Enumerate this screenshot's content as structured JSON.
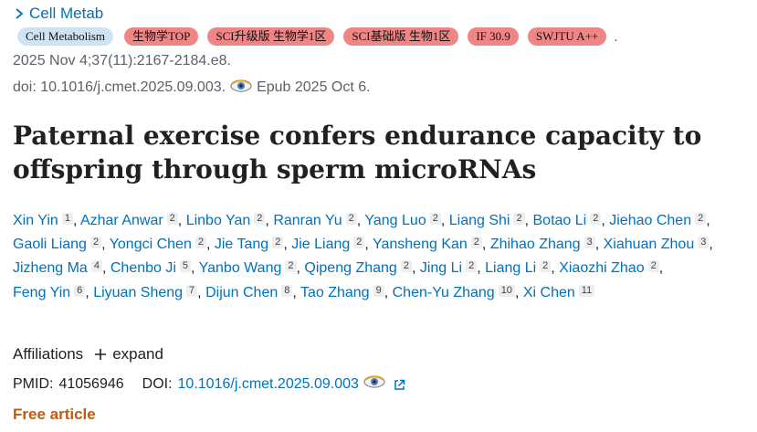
{
  "journal": {
    "name": "Cell Metab"
  },
  "badges": [
    {
      "text": "Cell Metabolism",
      "style": "blue"
    },
    {
      "text": "生物学TOP",
      "style": "red"
    },
    {
      "text": "SCI升级版 生物学1区",
      "style": "red"
    },
    {
      "text": "SCI基础版 生物1区",
      "style": "red"
    },
    {
      "text": "IF 30.9",
      "style": "red"
    },
    {
      "text": "SWJTU A++",
      "style": "red"
    }
  ],
  "badge_trailer": ".",
  "citation": "2025 Nov 4;37(11):2167-2184.e8.",
  "doi_line": {
    "doi": "doi: 10.1016/j.cmet.2025.09.003.",
    "epub": "Epub 2025 Oct 6."
  },
  "title": "Paternal exercise confers endurance capacity to offspring through sperm microRNAs",
  "authors": [
    {
      "name": "Xin Yin",
      "aff": "1"
    },
    {
      "name": "Azhar Anwar",
      "aff": "2"
    },
    {
      "name": "Linbo Yan",
      "aff": "2"
    },
    {
      "name": "Ranran Yu",
      "aff": "2"
    },
    {
      "name": "Yang Luo",
      "aff": "2"
    },
    {
      "name": "Liang Shi",
      "aff": "2"
    },
    {
      "name": "Botao Li",
      "aff": "2"
    },
    {
      "name": "Jiehao Chen",
      "aff": "2"
    },
    {
      "name": "Gaoli Liang",
      "aff": "2"
    },
    {
      "name": "Yongci Chen",
      "aff": "2"
    },
    {
      "name": "Jie Tang",
      "aff": "2"
    },
    {
      "name": "Jie Liang",
      "aff": "2"
    },
    {
      "name": "Yansheng Kan",
      "aff": "2"
    },
    {
      "name": "Zhihao Zhang",
      "aff": "3"
    },
    {
      "name": "Xiahuan Zhou",
      "aff": "3"
    },
    {
      "name": "Jizheng Ma",
      "aff": "4"
    },
    {
      "name": "Chenbo Ji",
      "aff": "5"
    },
    {
      "name": "Yanbo Wang",
      "aff": "2"
    },
    {
      "name": "Qipeng Zhang",
      "aff": "2"
    },
    {
      "name": "Jing Li",
      "aff": "2"
    },
    {
      "name": "Liang Li",
      "aff": "2"
    },
    {
      "name": "Xiaozhi Zhao",
      "aff": "2"
    },
    {
      "name": "Feng Yin",
      "aff": "6"
    },
    {
      "name": "Liyuan Sheng",
      "aff": "7"
    },
    {
      "name": "Dijun Chen",
      "aff": "8"
    },
    {
      "name": "Tao Zhang",
      "aff": "9"
    },
    {
      "name": "Chen-Yu Zhang",
      "aff": "10"
    },
    {
      "name": "Xi Chen",
      "aff": "11"
    }
  ],
  "affiliations": {
    "label": "Affiliations",
    "expand": "expand"
  },
  "ids": {
    "pmid_label": "PMID:",
    "pmid": "41056946",
    "doi_label": "DOI:",
    "doi": "10.1016/j.cmet.2025.09.003"
  },
  "free_article": "Free article",
  "colors": {
    "link": "#0071bc",
    "badge_red": "#ef8585",
    "badge_blue": "#cfe3f5",
    "free": "#c05a10"
  },
  "icons": {
    "journal": "chevron-right-icon",
    "epub": "eye-icon",
    "affiliations": "plus-icon",
    "doi": "external-link-icon"
  }
}
